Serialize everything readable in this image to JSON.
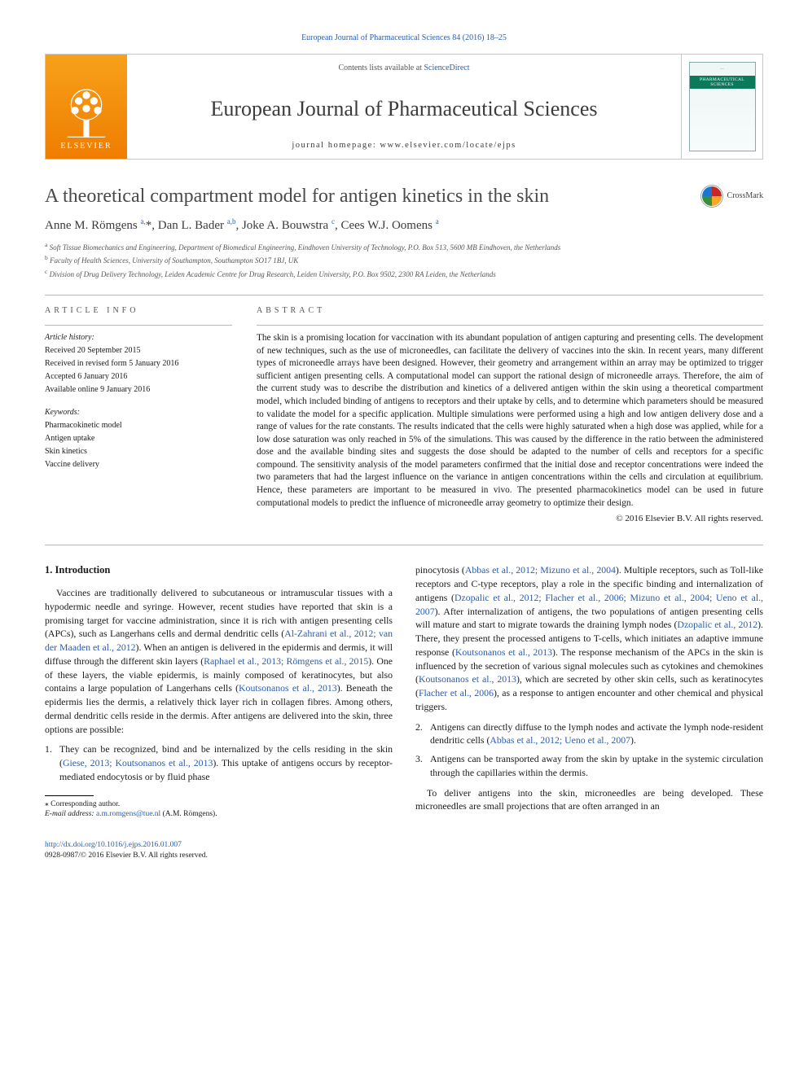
{
  "top_link": {
    "text": "European Journal of Pharmaceutical Sciences 84 (2016) 18–25"
  },
  "masthead": {
    "contents_prefix": "Contents lists available at ",
    "contents_link": "ScienceDirect",
    "journal": "European Journal of Pharmaceutical Sciences",
    "homepage_label": "journal homepage: ",
    "homepage_url": "www.elsevier.com/locate/ejps",
    "publisher": "ELSEVIER",
    "cover_badge": "PHARMACEUTICAL SCIENCES"
  },
  "crossmark_label": "CrossMark",
  "title": "A theoretical compartment model for antigen kinetics in the skin",
  "authors_html": "Anne M. Römgens <sup>a,</sup>*, Dan L. Bader <sup>a,b</sup>, Joke A. Bouwstra <sup>c</sup>, Cees W.J. Oomens <sup>a</sup>",
  "affiliations": [
    {
      "sup": "a",
      "text": "Soft Tissue Biomechanics and Engineering, Department of Biomedical Engineering, Eindhoven University of Technology, P.O. Box 513, 5600 MB Eindhoven, the Netherlands"
    },
    {
      "sup": "b",
      "text": "Faculty of Health Sciences, University of Southampton, Southampton SO17 1BJ, UK"
    },
    {
      "sup": "c",
      "text": "Division of Drug Delivery Technology, Leiden Academic Centre for Drug Research, Leiden University, P.O. Box 9502, 2300 RA Leiden, the Netherlands"
    }
  ],
  "article_info": {
    "heading": "article info",
    "history_label": "Article history:",
    "history": [
      "Received 20 September 2015",
      "Received in revised form 5 January 2016",
      "Accepted 6 January 2016",
      "Available online 9 January 2016"
    ],
    "keywords_label": "Keywords:",
    "keywords": [
      "Pharmacokinetic model",
      "Antigen uptake",
      "Skin kinetics",
      "Vaccine delivery"
    ]
  },
  "abstract": {
    "heading": "abstract",
    "text": "The skin is a promising location for vaccination with its abundant population of antigen capturing and presenting cells. The development of new techniques, such as the use of microneedles, can facilitate the delivery of vaccines into the skin. In recent years, many different types of microneedle arrays have been designed. However, their geometry and arrangement within an array may be optimized to trigger sufficient antigen presenting cells. A computational model can support the rational design of microneedle arrays. Therefore, the aim of the current study was to describe the distribution and kinetics of a delivered antigen within the skin using a theoretical compartment model, which included binding of antigens to receptors and their uptake by cells, and to determine which parameters should be measured to validate the model for a specific application. Multiple simulations were performed using a high and low antigen delivery dose and a range of values for the rate constants. The results indicated that the cells were highly saturated when a high dose was applied, while for a low dose saturation was only reached in 5% of the simulations. This was caused by the difference in the ratio between the administered dose and the available binding sites and suggests the dose should be adapted to the number of cells and receptors for a specific compound. The sensitivity analysis of the model parameters confirmed that the initial dose and receptor concentrations were indeed the two parameters that had the largest influence on the variance in antigen concentrations within the cells and circulation at equilibrium. Hence, these parameters are important to be measured in vivo. The presented pharmacokinetics model can be used in future computational models to predict the influence of microneedle array geometry to optimize their design.",
    "copyright": "© 2016 Elsevier B.V. All rights reserved."
  },
  "intro": {
    "heading": "1. Introduction",
    "p1_pre": "Vaccines are traditionally delivered to subcutaneous or intramuscular tissues with a hypodermic needle and syringe. However, recent studies have reported that skin is a promising target for vaccine administration, since it is rich with antigen presenting cells (APCs), such as Langerhans cells and dermal dendritic cells (",
    "p1_link1": "Al-Zahrani et al., 2012; van der Maaden et al., 2012",
    "p1_mid1": "). When an antigen is delivered in the epidermis and dermis, it will diffuse through the different skin layers (",
    "p1_link2": "Raphael et al., 2013; Römgens et al., 2015",
    "p1_mid2": "). One of these layers, the viable epidermis, is mainly composed of keratinocytes, but also contains a large population of Langerhans cells (",
    "p1_link3": "Koutsonanos et al., 2013",
    "p1_mid3": "). Beneath the epidermis lies the dermis, a relatively thick layer rich in collagen fibres. Among others, dermal dendritic cells reside in the dermis. After antigens are delivered into the skin, three options are possible:",
    "li1_pre": "They can be recognized, bind and be internalized by the cells residing in the skin (",
    "li1_link1": "Giese, 2013; Koutsonanos et al., 2013",
    "li1_mid": "). This uptake of antigens occurs by receptor-mediated endocytosis or by fluid phase",
    "li1_cont_pre": "pinocytosis (",
    "li1_cont_link1": "Abbas et al., 2012; Mizuno et al., 2004",
    "li1_cont_mid1": "). Multiple receptors, such as Toll-like receptors and C-type receptors, play a role in the specific binding and internalization of antigens (",
    "li1_cont_link2": "Dzopalic et al., 2012; Flacher et al., 2006; Mizuno et al., 2004; Ueno et al., 2007",
    "li1_cont_mid2": "). After internalization of antigens, the two populations of antigen presenting cells will mature and start to migrate towards the draining lymph nodes (",
    "li1_cont_link3": "Dzopalic et al., 2012",
    "li1_cont_mid3": "). There, they present the processed antigens to T-cells, which initiates an adaptive immune response (",
    "li1_cont_link4": "Koutsonanos et al., 2013",
    "li1_cont_mid4": "). The response mechanism of the APCs in the skin is influenced by the secretion of various signal molecules such as cytokines and chemokines (",
    "li1_cont_link5": "Koutsonanos et al., 2013",
    "li1_cont_mid5": "), which are secreted by other skin cells, such as keratinocytes (",
    "li1_cont_link6": "Flacher et al., 2006",
    "li1_cont_mid6": "), as a response to antigen encounter and other chemical and physical triggers.",
    "li2_pre": "Antigens can directly diffuse to the lymph nodes and activate the lymph node-resident dendritic cells (",
    "li2_link": "Abbas et al., 2012; Ueno et al., 2007",
    "li2_post": ").",
    "li3": "Antigens can be transported away from the skin by uptake in the systemic circulation through the capillaries within the dermis.",
    "p_last": "To deliver antigens into the skin, microneedles are being developed. These microneedles are small projections that are often arranged in an"
  },
  "footnote": {
    "corr": "⁎ Corresponding author.",
    "email_label": "E-mail address: ",
    "email": "a.m.romgens@tue.nl",
    "email_who": " (A.M. Römgens)."
  },
  "footer": {
    "doi": "http://dx.doi.org/10.1016/j.ejps.2016.01.007",
    "issn_line": "0928-0987/© 2016 Elsevier B.V. All rights reserved."
  },
  "colors": {
    "link": "#2a5db0",
    "text": "#1a1a1a",
    "rule": "#b8b8b8",
    "orange_top": "#f7a11a",
    "orange_bottom": "#ef7d00",
    "crossmark_red": "#c62828",
    "crossmark_yellow": "#f9a825",
    "crossmark_blue": "#1976d2",
    "crossmark_green": "#388e3c"
  }
}
